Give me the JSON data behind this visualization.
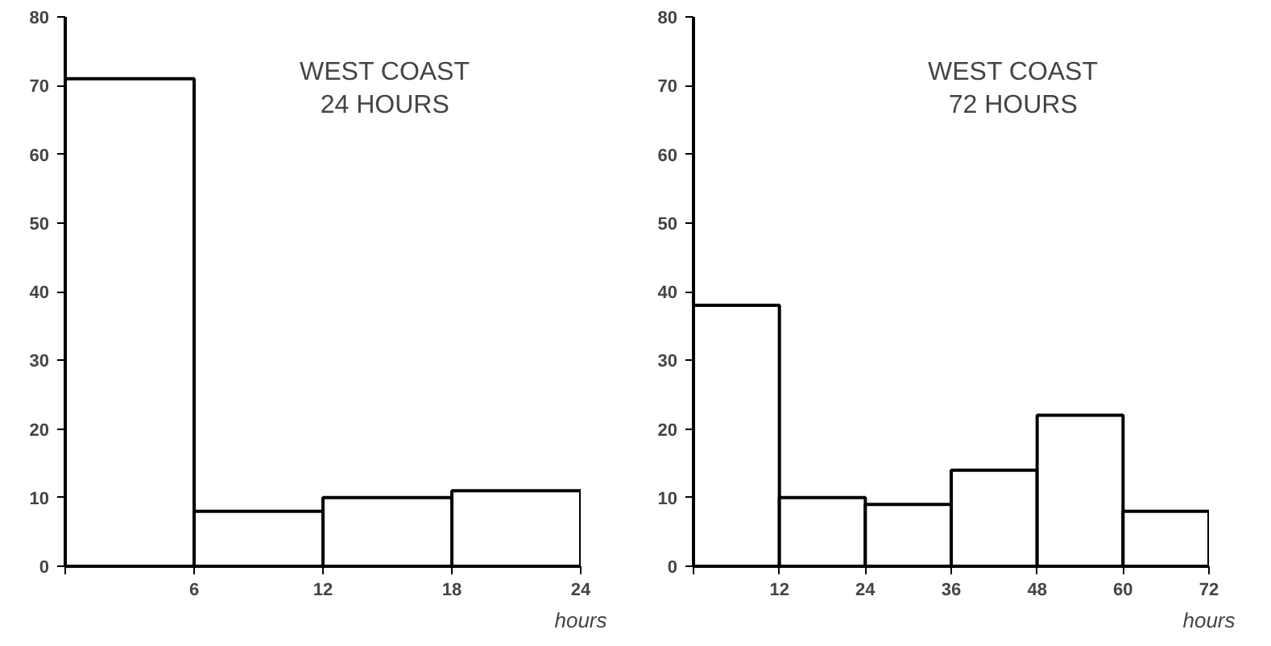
{
  "chart_data": [
    {
      "type": "histogram",
      "title": "WEST COAST\n24 HOURS",
      "xlabel": "hours",
      "bins": [
        0,
        6,
        12,
        18,
        24
      ],
      "values": [
        71,
        8,
        10,
        11
      ],
      "color": "#ffffff",
      "xlim": [
        0,
        24
      ],
      "xticks": [
        {
          "value": 0,
          "label": null
        },
        6,
        12,
        18,
        24
      ],
      "ylim": [
        0,
        80
      ],
      "yticks": [
        0,
        10,
        20,
        30,
        40,
        50,
        60,
        70,
        80
      ],
      "grid": false
    },
    {
      "type": "histogram",
      "title": "WEST COAST\n72 HOURS",
      "xlabel": "hours",
      "bins": [
        0,
        12,
        24,
        36,
        48,
        60,
        72
      ],
      "values": [
        38,
        10,
        9,
        14,
        22,
        8
      ],
      "color": "#ffffff",
      "xlim": [
        0,
        72
      ],
      "xticks": [
        {
          "value": 0,
          "label": null
        },
        12,
        24,
        36,
        48,
        60,
        72
      ],
      "ylim": [
        0,
        80
      ],
      "yticks": [
        0,
        10,
        20,
        30,
        40,
        50,
        60,
        70,
        80
      ],
      "grid": false
    }
  ]
}
